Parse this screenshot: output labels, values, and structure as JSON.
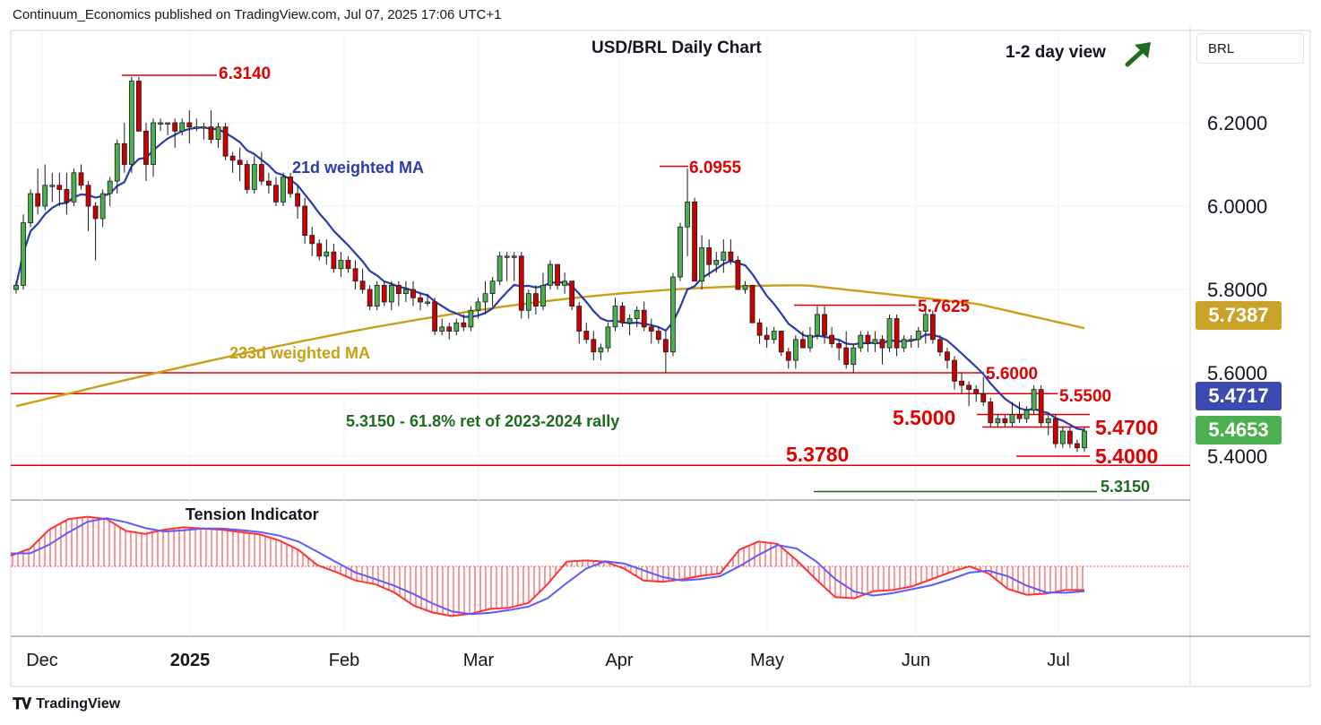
{
  "header": {
    "publisher_line": "Continuum_Economics published on TradingView.com, Jul 07, 2025 17:06 UTC+1"
  },
  "symbol_box": {
    "label": "BRL"
  },
  "footer": {
    "brand": "TradingView"
  },
  "view": {
    "label": "1-2 day view",
    "arrow": "arrow-up-right-icon"
  },
  "colors": {
    "up_candle": "#4caf50",
    "down_candle": "#cc0000",
    "ma21": "#2a3cad",
    "ma233": "#c8a015",
    "level_line": "#e00000",
    "fib_line": "#1f6b1f",
    "tension_red": "#ff3333",
    "tension_blue": "#5b5bff",
    "last_price_bg": "#4caf50",
    "ma21_bg": "#3c4bb0",
    "ma233_bg": "#c9a227"
  },
  "chart_data": [
    {
      "type": "candlestick",
      "title": "USD/BRL Daily Chart",
      "ylim": [
        5.27,
        6.44
      ],
      "y_ticks": [
        "6.2000",
        "6.0000",
        "5.8000",
        "5.6000",
        "5.4000"
      ],
      "x_ticks": [
        "Dec",
        "2025",
        "Feb",
        "Mar",
        "Apr",
        "May",
        "Jun",
        "Jul"
      ],
      "price_labels": {
        "ma233": "5.7387",
        "ma21": "5.4717",
        "last": "5.4653"
      },
      "annotations": {
        "high_1": "6.3140",
        "high_2": "6.0955",
        "level_5_7625": "5.7625",
        "level_5_6000": "5.6000",
        "level_5_5500": "5.5500",
        "level_5_5000": "5.5000",
        "level_5_4700": "5.4700",
        "level_5_4000": "5.4000",
        "level_5_3780": "5.3780",
        "level_5_3150": "5.3150",
        "fib_note": "5.3150 - 61.8% ret of 2023-2024 rally",
        "ma21_label": "21d weighted MA",
        "ma233_label": "233d weighted MA"
      },
      "ohlc": [
        [
          5.8,
          5.82,
          5.79,
          5.81
        ],
        [
          5.81,
          5.98,
          5.8,
          5.96
        ],
        [
          5.96,
          6.04,
          5.95,
          6.03
        ],
        [
          6.03,
          6.09,
          5.98,
          6.0
        ],
        [
          6.0,
          6.1,
          5.99,
          6.05
        ],
        [
          6.05,
          6.08,
          6.01,
          6.05
        ],
        [
          6.05,
          6.08,
          6.0,
          6.04
        ],
        [
          6.04,
          6.08,
          5.98,
          6.01
        ],
        [
          6.01,
          6.09,
          6.0,
          6.08
        ],
        [
          6.08,
          6.1,
          6.04,
          6.05
        ],
        [
          6.05,
          6.06,
          5.94,
          6.0
        ],
        [
          6.0,
          6.01,
          5.87,
          5.97
        ],
        [
          5.97,
          6.04,
          5.95,
          6.03
        ],
        [
          6.03,
          6.07,
          6.0,
          6.06
        ],
        [
          6.06,
          6.16,
          6.03,
          6.15
        ],
        [
          6.15,
          6.2,
          6.08,
          6.1
        ],
        [
          6.1,
          6.31,
          6.08,
          6.3
        ],
        [
          6.3,
          6.31,
          6.18,
          6.18
        ],
        [
          6.18,
          6.2,
          6.06,
          6.1
        ],
        [
          6.1,
          6.21,
          6.07,
          6.2
        ],
        [
          6.2,
          6.21,
          6.18,
          6.2
        ],
        [
          6.2,
          6.2,
          6.17,
          6.2
        ],
        [
          6.2,
          6.21,
          6.14,
          6.18
        ],
        [
          6.18,
          6.21,
          6.17,
          6.2
        ],
        [
          6.2,
          6.23,
          6.15,
          6.19
        ],
        [
          6.19,
          6.21,
          6.18,
          6.19
        ],
        [
          6.19,
          6.2,
          6.16,
          6.19
        ],
        [
          6.19,
          6.23,
          6.15,
          6.16
        ],
        [
          6.16,
          6.2,
          6.14,
          6.19
        ],
        [
          6.19,
          6.2,
          6.11,
          6.12
        ],
        [
          6.12,
          6.13,
          6.08,
          6.11
        ],
        [
          6.11,
          6.14,
          6.06,
          6.1
        ],
        [
          6.1,
          6.11,
          6.03,
          6.04
        ],
        [
          6.04,
          6.12,
          6.03,
          6.1
        ],
        [
          6.1,
          6.13,
          6.05,
          6.06
        ],
        [
          6.06,
          6.08,
          6.03,
          6.05
        ],
        [
          6.05,
          6.07,
          6.0,
          6.01
        ],
        [
          6.01,
          6.08,
          6.0,
          6.07
        ],
        [
          6.07,
          6.08,
          6.02,
          6.03
        ],
        [
          6.03,
          6.05,
          5.97,
          6.0
        ],
        [
          6.0,
          6.02,
          5.91,
          5.93
        ],
        [
          5.93,
          5.95,
          5.88,
          5.91
        ],
        [
          5.91,
          5.92,
          5.87,
          5.88
        ],
        [
          5.88,
          5.92,
          5.86,
          5.89
        ],
        [
          5.89,
          5.91,
          5.84,
          5.85
        ],
        [
          5.85,
          5.89,
          5.83,
          5.87
        ],
        [
          5.87,
          5.88,
          5.84,
          5.85
        ],
        [
          5.85,
          5.87,
          5.8,
          5.82
        ],
        [
          5.82,
          5.85,
          5.79,
          5.8
        ],
        [
          5.8,
          5.81,
          5.75,
          5.76
        ],
        [
          5.76,
          5.82,
          5.75,
          5.81
        ],
        [
          5.81,
          5.82,
          5.76,
          5.77
        ],
        [
          5.77,
          5.82,
          5.75,
          5.81
        ],
        [
          5.81,
          5.82,
          5.76,
          5.79
        ],
        [
          5.79,
          5.82,
          5.77,
          5.8
        ],
        [
          5.8,
          5.82,
          5.76,
          5.78
        ],
        [
          5.78,
          5.79,
          5.75,
          5.77
        ],
        [
          5.77,
          5.79,
          5.76,
          5.77
        ],
        [
          5.77,
          5.78,
          5.69,
          5.7
        ],
        [
          5.7,
          5.73,
          5.69,
          5.71
        ],
        [
          5.71,
          5.72,
          5.68,
          5.7
        ],
        [
          5.7,
          5.73,
          5.69,
          5.72
        ],
        [
          5.72,
          5.74,
          5.7,
          5.71
        ],
        [
          5.71,
          5.76,
          5.7,
          5.75
        ],
        [
          5.75,
          5.78,
          5.73,
          5.77
        ],
        [
          5.77,
          5.82,
          5.74,
          5.79
        ],
        [
          5.79,
          5.83,
          5.76,
          5.82
        ],
        [
          5.82,
          5.89,
          5.81,
          5.88
        ],
        [
          5.88,
          5.89,
          5.82,
          5.88
        ],
        [
          5.88,
          5.89,
          5.82,
          5.88
        ],
        [
          5.88,
          5.89,
          5.73,
          5.75
        ],
        [
          5.75,
          5.8,
          5.73,
          5.79
        ],
        [
          5.79,
          5.81,
          5.74,
          5.76
        ],
        [
          5.76,
          5.84,
          5.75,
          5.81
        ],
        [
          5.81,
          5.87,
          5.8,
          5.86
        ],
        [
          5.86,
          5.86,
          5.8,
          5.81
        ],
        [
          5.81,
          5.84,
          5.79,
          5.82
        ],
        [
          5.82,
          5.82,
          5.75,
          5.76
        ],
        [
          5.76,
          5.77,
          5.67,
          5.7
        ],
        [
          5.7,
          5.72,
          5.67,
          5.68
        ],
        [
          5.68,
          5.7,
          5.63,
          5.65
        ],
        [
          5.65,
          5.67,
          5.63,
          5.66
        ],
        [
          5.66,
          5.72,
          5.65,
          5.71
        ],
        [
          5.71,
          5.78,
          5.7,
          5.76
        ],
        [
          5.76,
          5.77,
          5.71,
          5.72
        ],
        [
          5.72,
          5.74,
          5.69,
          5.73
        ],
        [
          5.73,
          5.76,
          5.71,
          5.75
        ],
        [
          5.75,
          5.77,
          5.7,
          5.71
        ],
        [
          5.71,
          5.73,
          5.67,
          5.7
        ],
        [
          5.7,
          5.71,
          5.67,
          5.68
        ],
        [
          5.68,
          5.7,
          5.6,
          5.65
        ],
        [
          5.65,
          5.84,
          5.64,
          5.83
        ],
        [
          5.83,
          5.96,
          5.82,
          5.95
        ],
        [
          5.95,
          6.09,
          5.88,
          6.01
        ],
        [
          6.01,
          6.02,
          5.82,
          5.82
        ],
        [
          5.82,
          5.93,
          5.8,
          5.9
        ],
        [
          5.9,
          5.92,
          5.83,
          5.86
        ],
        [
          5.86,
          5.89,
          5.84,
          5.87
        ],
        [
          5.87,
          5.92,
          5.84,
          5.89
        ],
        [
          5.89,
          5.92,
          5.86,
          5.87
        ],
        [
          5.87,
          5.88,
          5.8,
          5.8
        ],
        [
          5.8,
          5.82,
          5.79,
          5.81
        ],
        [
          5.81,
          5.81,
          5.72,
          5.72
        ],
        [
          5.72,
          5.73,
          5.67,
          5.69
        ],
        [
          5.69,
          5.71,
          5.66,
          5.68
        ],
        [
          5.68,
          5.71,
          5.67,
          5.7
        ],
        [
          5.7,
          5.7,
          5.64,
          5.65
        ],
        [
          5.65,
          5.66,
          5.61,
          5.63
        ],
        [
          5.63,
          5.69,
          5.61,
          5.68
        ],
        [
          5.68,
          5.7,
          5.66,
          5.66
        ],
        [
          5.66,
          5.71,
          5.65,
          5.69
        ],
        [
          5.69,
          5.76,
          5.68,
          5.74
        ],
        [
          5.74,
          5.76,
          5.67,
          5.69
        ],
        [
          5.69,
          5.71,
          5.66,
          5.67
        ],
        [
          5.67,
          5.68,
          5.63,
          5.66
        ],
        [
          5.66,
          5.7,
          5.61,
          5.62
        ],
        [
          5.62,
          5.67,
          5.6,
          5.66
        ],
        [
          5.66,
          5.7,
          5.65,
          5.69
        ],
        [
          5.69,
          5.7,
          5.65,
          5.67
        ],
        [
          5.67,
          5.7,
          5.65,
          5.68
        ],
        [
          5.68,
          5.69,
          5.62,
          5.66
        ],
        [
          5.66,
          5.74,
          5.65,
          5.73
        ],
        [
          5.73,
          5.74,
          5.64,
          5.66
        ],
        [
          5.66,
          5.69,
          5.65,
          5.68
        ],
        [
          5.68,
          5.69,
          5.66,
          5.68
        ],
        [
          5.68,
          5.71,
          5.66,
          5.7
        ],
        [
          5.7,
          5.76,
          5.67,
          5.74
        ],
        [
          5.74,
          5.75,
          5.67,
          5.68
        ],
        [
          5.68,
          5.69,
          5.64,
          5.65
        ],
        [
          5.65,
          5.66,
          5.61,
          5.63
        ],
        [
          5.63,
          5.64,
          5.56,
          5.58
        ],
        [
          5.58,
          5.6,
          5.55,
          5.57
        ],
        [
          5.57,
          5.58,
          5.52,
          5.56
        ],
        [
          5.56,
          5.57,
          5.53,
          5.55
        ],
        [
          5.55,
          5.59,
          5.52,
          5.53
        ],
        [
          5.53,
          5.54,
          5.47,
          5.48
        ],
        [
          5.48,
          5.5,
          5.47,
          5.49
        ],
        [
          5.49,
          5.5,
          5.47,
          5.48
        ],
        [
          5.48,
          5.53,
          5.47,
          5.5
        ],
        [
          5.5,
          5.53,
          5.48,
          5.49
        ],
        [
          5.49,
          5.52,
          5.48,
          5.51
        ],
        [
          5.51,
          5.57,
          5.5,
          5.56
        ],
        [
          5.56,
          5.57,
          5.47,
          5.48
        ],
        [
          5.48,
          5.5,
          5.45,
          5.49
        ],
        [
          5.49,
          5.5,
          5.42,
          5.43
        ],
        [
          5.43,
          5.47,
          5.42,
          5.46
        ],
        [
          5.46,
          5.47,
          5.42,
          5.43
        ],
        [
          5.43,
          5.44,
          5.41,
          5.42
        ],
        [
          5.42,
          5.47,
          5.41,
          5.46
        ]
      ]
    },
    {
      "type": "line",
      "title": "Tension Indicator",
      "series": [
        {
          "values": [
            0.18,
            0.3,
            0.62,
            0.8,
            0.84,
            0.8,
            0.6,
            0.55,
            0.62,
            0.66,
            0.64,
            0.62,
            0.58,
            0.54,
            0.44,
            0.28,
            0.02,
            -0.1,
            -0.24,
            -0.3,
            -0.44,
            -0.66,
            -0.78,
            -0.84,
            -0.8,
            -0.72,
            -0.7,
            -0.62,
            -0.3,
            0.08,
            0.1,
            0.08,
            -0.04,
            -0.24,
            -0.26,
            -0.22,
            -0.16,
            -0.12,
            0.28,
            0.42,
            0.38,
            0.1,
            -0.22,
            -0.52,
            -0.54,
            -0.42,
            -0.4,
            -0.34,
            -0.22,
            -0.1,
            0.0,
            -0.12,
            -0.38,
            -0.48,
            -0.46,
            -0.4,
            -0.4
          ]
        }
      ]
    }
  ]
}
